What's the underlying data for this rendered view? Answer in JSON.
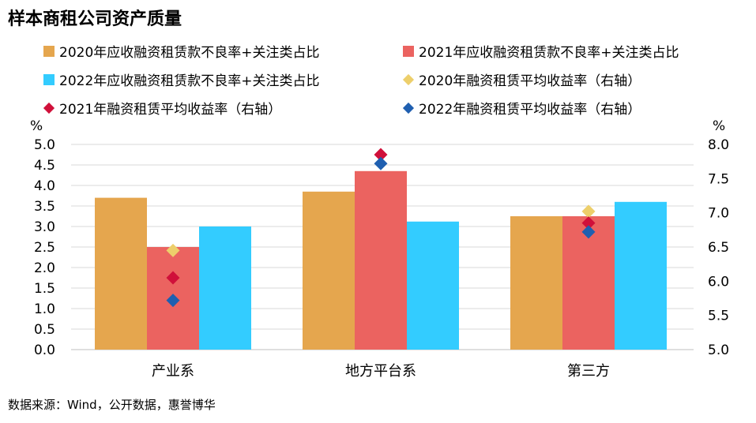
{
  "title": "样本商租公司资产质量",
  "source": "数据来源：Wind，公开数据，惠誉博华",
  "chart_data": {
    "type": "bar",
    "categories": [
      "产业系",
      "地方平台系",
      "第三方"
    ],
    "series": [
      {
        "name": "2020年应收融资租赁款不良率+关注类占比",
        "kind": "bar",
        "axis": "left",
        "color": "#E5A64E",
        "values": [
          3.7,
          3.85,
          3.25
        ]
      },
      {
        "name": "2021年应收融资租赁款不良率+关注类占比",
        "kind": "bar",
        "axis": "left",
        "color": "#EB6360",
        "values": [
          2.5,
          4.35,
          3.25
        ]
      },
      {
        "name": "2022年应收融资租赁款不良率+关注类占比",
        "kind": "bar",
        "axis": "left",
        "color": "#33CCFF",
        "values": [
          3.0,
          3.12,
          3.6
        ]
      },
      {
        "name": "2020年融资租赁平均收益率（右轴）",
        "kind": "marker",
        "axis": "right",
        "color": "#EDCF6B",
        "values": [
          6.45,
          null,
          7.02
        ]
      },
      {
        "name": "2021年融资租赁平均收益率（右轴）",
        "kind": "marker",
        "axis": "right",
        "color": "#D0103A",
        "values": [
          6.05,
          7.85,
          6.85
        ]
      },
      {
        "name": "2022年融资租赁平均收益率（右轴）",
        "kind": "marker",
        "axis": "right",
        "color": "#1F5FB0",
        "values": [
          5.72,
          7.72,
          6.72
        ]
      }
    ],
    "y_left": {
      "unit": "%",
      "min": 0,
      "max": 5,
      "ticks": [
        "0.0",
        "0.5",
        "1.0",
        "1.5",
        "2.0",
        "2.5",
        "3.0",
        "3.5",
        "4.0",
        "4.5",
        "5.0"
      ]
    },
    "y_right": {
      "unit": "%",
      "min": 5,
      "max": 8,
      "ticks": [
        "5.0",
        "5.5",
        "6.0",
        "6.5",
        "7.0",
        "7.5",
        "8.0"
      ]
    },
    "grid": true,
    "legend_position": "top"
  }
}
